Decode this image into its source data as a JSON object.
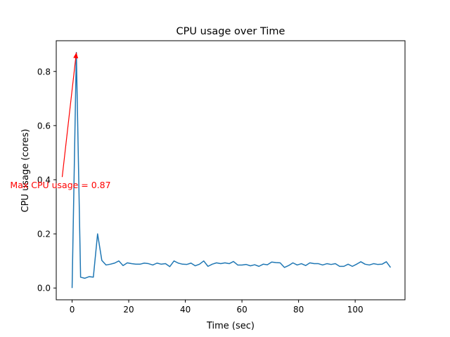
{
  "colors": {
    "line": "#1f77b4",
    "annotation": "#ff0000",
    "axis": "#000000"
  },
  "chart_data": {
    "type": "line",
    "title": "CPU usage over Time",
    "xlabel": "Time (sec)",
    "ylabel": "CPU usage (cores)",
    "xlim": [
      -5.6,
      117.6
    ],
    "ylim": [
      -0.0435,
      0.9135
    ],
    "xticks": [
      0,
      20,
      40,
      60,
      80,
      100
    ],
    "yticks": [
      0.0,
      0.2,
      0.4,
      0.6,
      0.8
    ],
    "xtick_labels": [
      "0",
      "20",
      "40",
      "60",
      "80",
      "100"
    ],
    "ytick_labels": [
      "0.0",
      "0.2",
      "0.4",
      "0.6",
      "0.8"
    ],
    "grid": false,
    "legend": "none",
    "series": [
      {
        "x": [
          0,
          1.5,
          3,
          4.5,
          6,
          7.5,
          9,
          10.5,
          12,
          13.5,
          15,
          16.5,
          18,
          19.5,
          21,
          22.5,
          24,
          25.5,
          27,
          28.5,
          30,
          31.5,
          33,
          34.5,
          36,
          37.5,
          39,
          40.5,
          42,
          43.5,
          45,
          46.5,
          48,
          49.5,
          51,
          52.5,
          54,
          55.5,
          57,
          58.5,
          60,
          61.5,
          63,
          64.5,
          66,
          67.5,
          69,
          70.5,
          72,
          73.5,
          75,
          76.5,
          78,
          79.5,
          81,
          82.5,
          84,
          85.5,
          87,
          88.5,
          90,
          91.5,
          93,
          94.5,
          96,
          97.5,
          99,
          100.5,
          102,
          103.5,
          105,
          106.5,
          108,
          109.5,
          111,
          112.5
        ],
        "y": [
          0.0,
          0.87,
          0.04,
          0.036,
          0.042,
          0.04,
          0.2,
          0.102,
          0.085,
          0.088,
          0.092,
          0.1,
          0.083,
          0.093,
          0.09,
          0.088,
          0.088,
          0.092,
          0.09,
          0.085,
          0.092,
          0.088,
          0.09,
          0.079,
          0.1,
          0.092,
          0.088,
          0.087,
          0.092,
          0.082,
          0.088,
          0.1,
          0.08,
          0.088,
          0.093,
          0.09,
          0.093,
          0.09,
          0.098,
          0.085,
          0.085,
          0.087,
          0.082,
          0.086,
          0.08,
          0.088,
          0.086,
          0.096,
          0.094,
          0.093,
          0.076,
          0.083,
          0.093,
          0.085,
          0.09,
          0.083,
          0.093,
          0.09,
          0.09,
          0.085,
          0.09,
          0.087,
          0.09,
          0.08,
          0.08,
          0.088,
          0.08,
          0.088,
          0.097,
          0.088,
          0.085,
          0.09,
          0.087,
          0.088,
          0.097,
          0.076
        ]
      }
    ],
    "annotation": {
      "text": "Max CPU usage = 0.87",
      "point": [
        1.5,
        0.87
      ],
      "text_position": [
        -3.5,
        0.41
      ]
    }
  }
}
